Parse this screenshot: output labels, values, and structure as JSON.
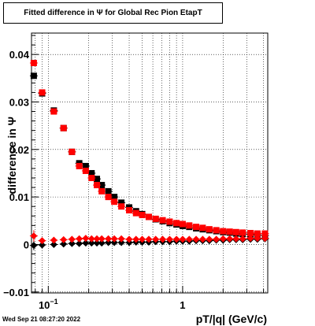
{
  "title": "Fitted difference in  Ψ  for Global Rec Pion EtapT",
  "timestamp": "Wed Sep 21 08:27:20 2022",
  "colors": {
    "series_black": "#000000",
    "series_red": "#ff0000",
    "grid": "#000000"
  },
  "chart_data": {
    "type": "scatter",
    "title": "Fitted difference in  Ψ  for Global Rec Pion EtapT",
    "xlabel": "pT/|q| (GeV/c)",
    "ylabel": "difference in  Ψ",
    "xscale": "log",
    "xlim": [
      0.075,
      4.3
    ],
    "ylim": [
      -0.0102,
      0.0445
    ],
    "grid": true,
    "x_ticks": [
      {
        "value": 0.1,
        "label": "10",
        "exp": "−1"
      },
      {
        "value": 1,
        "label": "1",
        "exp": ""
      }
    ],
    "y_ticks": [
      {
        "value": -0.01,
        "label": "−0.01"
      },
      {
        "value": 0,
        "label": "0"
      },
      {
        "value": 0.01,
        "label": "0.01"
      },
      {
        "value": 0.02,
        "label": "0.02"
      },
      {
        "value": 0.03,
        "label": "0.03"
      },
      {
        "value": 0.04,
        "label": "0.04"
      }
    ],
    "series": [
      {
        "color": "black",
        "marker": "square",
        "x": [
          0.078,
          0.09,
          0.11,
          0.13,
          0.15,
          0.17,
          0.19,
          0.21,
          0.23,
          0.25,
          0.28,
          0.31,
          0.35,
          0.4,
          0.45,
          0.5,
          0.56,
          0.63,
          0.71,
          0.8,
          0.9,
          1.0,
          1.12,
          1.26,
          1.41,
          1.58,
          1.78,
          2.0,
          2.24,
          2.5,
          2.8,
          3.2,
          3.6,
          4.1
        ],
        "y": [
          0.0355,
          0.0318,
          0.0282,
          0.0245,
          0.0195,
          0.0171,
          0.0165,
          0.015,
          0.0138,
          0.0125,
          0.0112,
          0.01,
          0.0088,
          0.0078,
          0.007,
          0.0064,
          0.0058,
          0.0053,
          0.0049,
          0.0045,
          0.0042,
          0.0039,
          0.0037,
          0.0034,
          0.0032,
          0.003,
          0.0028,
          0.0026,
          0.0025,
          0.0023,
          0.0022,
          0.0021,
          0.002,
          0.0019
        ],
        "yerr": [
          0.0006,
          0.0004,
          0.0003,
          0.0003,
          0.0002,
          0.0002,
          0.0002,
          0.0002,
          0.0001,
          0.0001,
          0.0001,
          0.0001,
          0.0001,
          0.0001,
          0.0001,
          0.0001,
          0.0001,
          0.0001,
          0.0001,
          0.0001,
          0.0001,
          0.0001,
          0.0001,
          0.0001,
          0.0001,
          0.0001,
          0.0001,
          0.0001,
          0.0001,
          0.0001,
          0.0001,
          0.0001,
          0.0001,
          0.0001
        ]
      },
      {
        "color": "red",
        "marker": "square",
        "x": [
          0.078,
          0.09,
          0.11,
          0.13,
          0.15,
          0.17,
          0.19,
          0.21,
          0.23,
          0.25,
          0.28,
          0.31,
          0.35,
          0.4,
          0.45,
          0.5,
          0.56,
          0.63,
          0.71,
          0.8,
          0.9,
          1.0,
          1.12,
          1.26,
          1.41,
          1.58,
          1.78,
          2.0,
          2.24,
          2.5,
          2.8,
          3.2,
          3.6,
          4.1
        ],
        "y": [
          0.0382,
          0.032,
          0.028,
          0.0245,
          0.0195,
          0.0165,
          0.0155,
          0.014,
          0.0125,
          0.0112,
          0.01,
          0.009,
          0.008,
          0.0072,
          0.0066,
          0.0062,
          0.0058,
          0.0054,
          0.0051,
          0.0048,
          0.0045,
          0.0043,
          0.004,
          0.0037,
          0.0035,
          0.0032,
          0.003,
          0.0028,
          0.0027,
          0.0026,
          0.0025,
          0.0024,
          0.0023,
          0.0023
        ],
        "yerr": [
          0.0006,
          0.0004,
          0.0003,
          0.0003,
          0.0002,
          0.0002,
          0.0002,
          0.0002,
          0.0001,
          0.0001,
          0.0001,
          0.0001,
          0.0001,
          0.0001,
          0.0001,
          0.0001,
          0.0001,
          0.0001,
          0.0001,
          0.0001,
          0.0001,
          0.0001,
          0.0001,
          0.0001,
          0.0001,
          0.0001,
          0.0001,
          0.0001,
          0.0001,
          0.0001,
          0.0001,
          0.0001,
          0.0001,
          0.0001
        ]
      },
      {
        "color": "black",
        "marker": "diamond",
        "x": [
          0.078,
          0.09,
          0.11,
          0.13,
          0.15,
          0.17,
          0.19,
          0.21,
          0.23,
          0.25,
          0.28,
          0.31,
          0.35,
          0.4,
          0.45,
          0.5,
          0.56,
          0.63,
          0.71,
          0.8,
          0.9,
          1.0,
          1.12,
          1.26,
          1.41,
          1.58,
          1.78,
          2.0,
          2.24,
          2.5,
          2.8,
          3.2,
          3.6,
          4.1
        ],
        "y": [
          -0.0002,
          -0.0001,
          0.0,
          0.0001,
          0.0002,
          0.0002,
          0.0003,
          0.0003,
          0.0003,
          0.0003,
          0.0004,
          0.0004,
          0.0004,
          0.0004,
          0.0005,
          0.0005,
          0.0005,
          0.0006,
          0.0006,
          0.0006,
          0.0007,
          0.0007,
          0.0007,
          0.0008,
          0.0008,
          0.0008,
          0.0009,
          0.0009,
          0.001,
          0.001,
          0.001,
          0.0011,
          0.0011,
          0.0012
        ],
        "yerr": [
          0.001,
          0.0004,
          0.0003,
          0.0002,
          0.0002,
          0.0002,
          0.0001,
          0.0001,
          0.0001,
          0.0001,
          0.0001,
          0.0001,
          0.0001,
          0.0001,
          0.0001,
          0.0001,
          0.0001,
          0.0001,
          0.0001,
          0.0001,
          0.0001,
          0.0001,
          0.0001,
          0.0001,
          0.0001,
          0.0001,
          0.0001,
          0.0001,
          0.0001,
          0.0001,
          0.0001,
          0.0001,
          0.0001,
          0.0001
        ]
      },
      {
        "color": "red",
        "marker": "diamond",
        "x": [
          0.078,
          0.09,
          0.11,
          0.13,
          0.15,
          0.17,
          0.19,
          0.21,
          0.23,
          0.25,
          0.28,
          0.31,
          0.35,
          0.4,
          0.45,
          0.5,
          0.56,
          0.63,
          0.71,
          0.8,
          0.9,
          1.0,
          1.12,
          1.26,
          1.41,
          1.58,
          1.78,
          2.0,
          2.24,
          2.5,
          2.8,
          3.2,
          3.6,
          4.1
        ],
        "y": [
          0.0018,
          0.0008,
          0.0009,
          0.001,
          0.0011,
          0.0012,
          0.0013,
          0.0012,
          0.0012,
          0.0012,
          0.0012,
          0.0012,
          0.0012,
          0.0011,
          0.0011,
          0.0011,
          0.0011,
          0.0011,
          0.0011,
          0.0011,
          0.0011,
          0.0011,
          0.0011,
          0.0011,
          0.0011,
          0.0011,
          0.0011,
          0.0012,
          0.0012,
          0.0012,
          0.0012,
          0.0013,
          0.0013,
          0.0013
        ],
        "yerr": [
          0.0012,
          0.0004,
          0.0003,
          0.0002,
          0.0002,
          0.0002,
          0.0001,
          0.0001,
          0.0001,
          0.0001,
          0.0001,
          0.0001,
          0.0001,
          0.0001,
          0.0001,
          0.0001,
          0.0001,
          0.0001,
          0.0001,
          0.0001,
          0.0001,
          0.0001,
          0.0001,
          0.0001,
          0.0001,
          0.0001,
          0.0001,
          0.0001,
          0.0001,
          0.0001,
          0.0001,
          0.0001,
          0.0001,
          0.0001
        ]
      }
    ]
  }
}
